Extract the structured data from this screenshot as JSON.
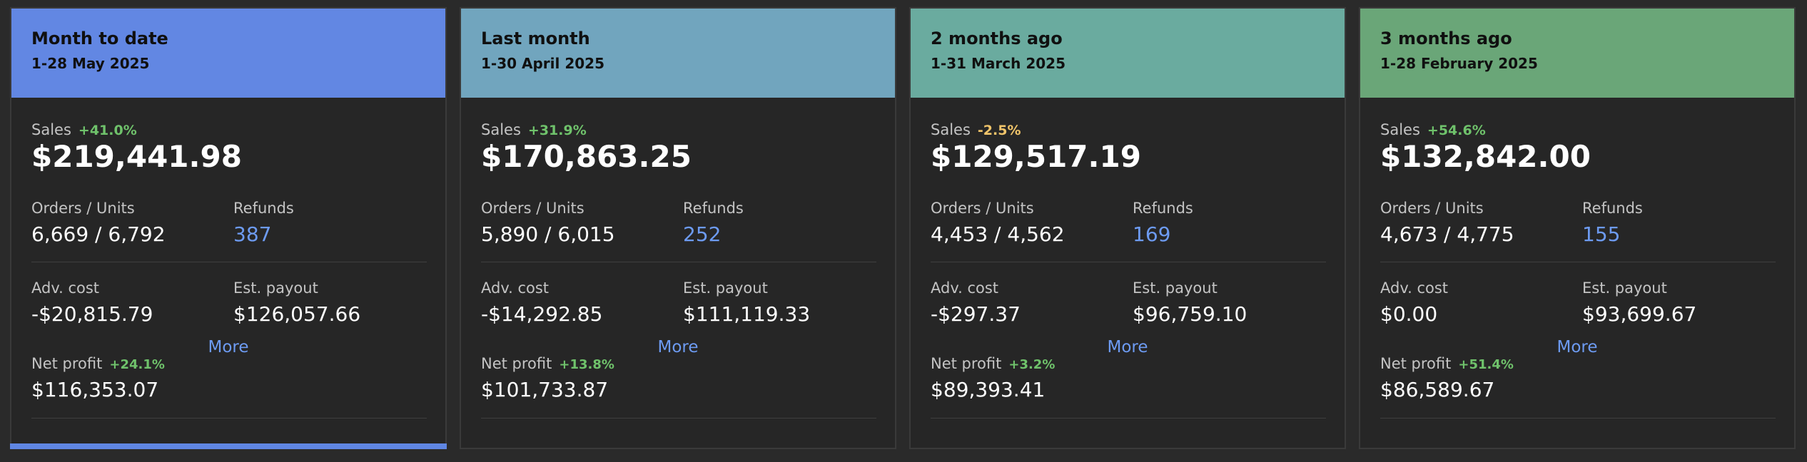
{
  "colors": {
    "positive": "#6fc26b",
    "warning": "#f0c46a",
    "link": "#6d9bf2",
    "headers": [
      "#6287e3",
      "#71a5be",
      "#6aab9f",
      "#6aa678"
    ]
  },
  "cards": [
    {
      "title": "Month to date",
      "subtitle": "1-28 May 2025",
      "sales_label": "Sales",
      "sales_delta": "+41.0%",
      "sales_delta_type": "positive",
      "sales": "$219,441.98",
      "orders_label": "Orders / Units",
      "orders": "6,669 / 6,792",
      "refunds_label": "Refunds",
      "refunds": "387",
      "adv_label": "Adv. cost",
      "adv": "-$20,815.79",
      "payout_label": "Est. payout",
      "payout": "$126,057.66",
      "net_label": "Net profit",
      "net_delta": "+24.1%",
      "net": "$116,353.07",
      "more": "More",
      "active": true
    },
    {
      "title": "Last month",
      "subtitle": "1-30 April 2025",
      "sales_label": "Sales",
      "sales_delta": "+31.9%",
      "sales_delta_type": "positive",
      "sales": "$170,863.25",
      "orders_label": "Orders / Units",
      "orders": "5,890 / 6,015",
      "refunds_label": "Refunds",
      "refunds": "252",
      "adv_label": "Adv. cost",
      "adv": "-$14,292.85",
      "payout_label": "Est. payout",
      "payout": "$111,119.33",
      "net_label": "Net profit",
      "net_delta": "+13.8%",
      "net": "$101,733.87",
      "more": "More",
      "active": false
    },
    {
      "title": "2 months ago",
      "subtitle": "1-31 March 2025",
      "sales_label": "Sales",
      "sales_delta": "-2.5%",
      "sales_delta_type": "warning",
      "sales": "$129,517.19",
      "orders_label": "Orders / Units",
      "orders": "4,453 / 4,562",
      "refunds_label": "Refunds",
      "refunds": "169",
      "adv_label": "Adv. cost",
      "adv": "-$297.37",
      "payout_label": "Est. payout",
      "payout": "$96,759.10",
      "net_label": "Net profit",
      "net_delta": "+3.2%",
      "net": "$89,393.41",
      "more": "More",
      "active": false
    },
    {
      "title": "3 months ago",
      "subtitle": "1-28 February 2025",
      "sales_label": "Sales",
      "sales_delta": "+54.6%",
      "sales_delta_type": "positive",
      "sales": "$132,842.00",
      "orders_label": "Orders / Units",
      "orders": "4,673 / 4,775",
      "refunds_label": "Refunds",
      "refunds": "155",
      "adv_label": "Adv. cost",
      "adv": "$0.00",
      "payout_label": "Est. payout",
      "payout": "$93,699.67",
      "net_label": "Net profit",
      "net_delta": "+51.4%",
      "net": "$86,589.67",
      "more": "More",
      "active": false
    }
  ]
}
